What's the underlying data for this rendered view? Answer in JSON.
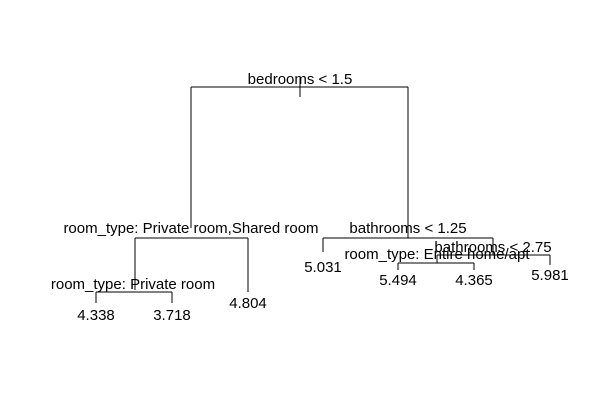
{
  "tree": {
    "root": {
      "split": "bedrooms < 1.5"
    },
    "left": {
      "split": "room_type: Private room,Shared room",
      "left": {
        "split": "room_type: Private room",
        "leaves": [
          "4.338",
          "3.718"
        ]
      },
      "right_leaf": "4.804"
    },
    "right": {
      "split": "bathrooms < 1.25",
      "left_leaf": "5.031",
      "right": {
        "split": "bathrooms < 2.75",
        "left": {
          "split": "room_type: Entire home/apt",
          "leaves": [
            "5.494",
            "4.365"
          ]
        },
        "right_leaf": "5.981"
      }
    }
  }
}
